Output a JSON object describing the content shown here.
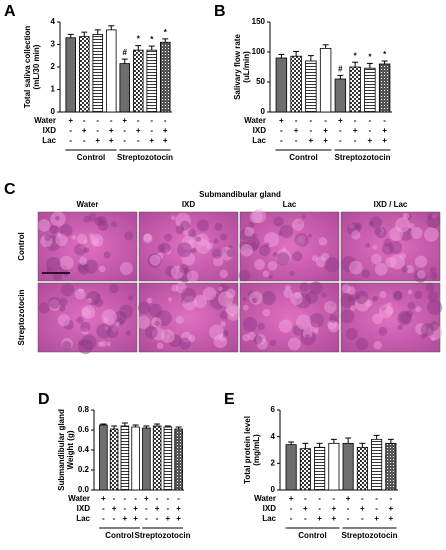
{
  "chart_data": [
    {
      "type": "bar",
      "panel": "A",
      "ylabel": [
        "Total saliva collection",
        "(mL/30 min)"
      ],
      "ylim": [
        0,
        4
      ],
      "yticks": [
        0,
        1,
        2,
        3,
        4
      ],
      "series": [
        {
          "values": [
            3.3,
            3.35,
            3.45,
            3.65,
            2.15,
            2.75,
            2.75,
            3.1
          ],
          "errors": [
            0.15,
            0.2,
            0.2,
            0.18,
            0.2,
            0.2,
            0.18,
            0.15
          ],
          "fills": [
            "solid-gray",
            "checker",
            "hlines",
            "white",
            "solid-gray",
            "checker",
            "hlines",
            "crosshatch"
          ]
        }
      ],
      "annotations": [
        null,
        null,
        null,
        null,
        "#",
        "*",
        "*",
        "*"
      ],
      "treatments": [
        {
          "name": "Water",
          "marks": [
            "+",
            "-",
            "-",
            "-",
            "+",
            "-",
            "-",
            "-"
          ]
        },
        {
          "name": "IXD",
          "marks": [
            "-",
            "+",
            "-",
            "+",
            "-",
            "+",
            "-",
            "+"
          ]
        },
        {
          "name": "Lac",
          "marks": [
            "-",
            "-",
            "+",
            "+",
            "-",
            "-",
            "+",
            "+"
          ]
        }
      ],
      "groups": [
        "Control",
        "Streptozotocin"
      ]
    },
    {
      "type": "bar",
      "panel": "B",
      "ylabel": [
        "Salivary flow rate",
        "(uL/min)"
      ],
      "ylim": [
        0,
        150
      ],
      "yticks": [
        0,
        50,
        100,
        150
      ],
      "series": [
        {
          "values": [
            90,
            93,
            85,
            106,
            55,
            75,
            73,
            80
          ],
          "errors": [
            6,
            8,
            9,
            6,
            6,
            8,
            8,
            5
          ],
          "fills": [
            "solid-gray",
            "checker",
            "hlines",
            "white",
            "solid-gray",
            "checker",
            "hlines",
            "crosshatch"
          ]
        }
      ],
      "annotations": [
        null,
        null,
        null,
        null,
        "#",
        "*",
        "*",
        "*"
      ],
      "treatments": [
        {
          "name": "Water",
          "marks": [
            "+",
            "-",
            "-",
            "-",
            "+",
            "-",
            "-",
            "-"
          ]
        },
        {
          "name": "IXD",
          "marks": [
            "-",
            "+",
            "-",
            "+",
            "-",
            "+",
            "-",
            "+"
          ]
        },
        {
          "name": "Lac",
          "marks": [
            "-",
            "-",
            "+",
            "+",
            "-",
            "-",
            "+",
            "+"
          ]
        }
      ],
      "groups": [
        "Control",
        "Streptozotocin"
      ]
    },
    {
      "type": "bar",
      "panel": "D",
      "ylabel": [
        "Submandibular gland",
        "Weight (g)"
      ],
      "ylim": [
        0,
        0.8
      ],
      "yticks": [
        {
          "value": 0,
          "label": "0.0"
        },
        0.2,
        0.4,
        0.6,
        0.8
      ],
      "series": [
        {
          "values": [
            0.65,
            0.61,
            0.64,
            0.63,
            0.62,
            0.64,
            0.63,
            0.61
          ],
          "errors": [
            0.01,
            0.03,
            0.03,
            0.02,
            0.02,
            0.02,
            0.01,
            0.02
          ],
          "fills": [
            "solid-gray",
            "checker",
            "hlines",
            "white",
            "solid-gray",
            "checker",
            "hlines",
            "crosshatch"
          ]
        }
      ],
      "annotations": [
        null,
        null,
        null,
        null,
        null,
        null,
        null,
        null
      ],
      "treatments": [
        {
          "name": "Water",
          "marks": [
            "+",
            "-",
            "-",
            "-",
            "+",
            "-",
            "-",
            "-"
          ]
        },
        {
          "name": "IXD",
          "marks": [
            "-",
            "+",
            "-",
            "+",
            "-",
            "+",
            "-",
            "+"
          ]
        },
        {
          "name": "Lac",
          "marks": [
            "-",
            "-",
            "+",
            "+",
            "-",
            "-",
            "+",
            "+"
          ]
        }
      ],
      "groups": [
        "Control",
        "Streptozotocin"
      ]
    },
    {
      "type": "bar",
      "panel": "E",
      "ylabel": [
        "Total protein level",
        "(mg/mL)"
      ],
      "ylim": [
        0,
        6
      ],
      "yticks": [
        0,
        2,
        4,
        6
      ],
      "series": [
        {
          "values": [
            3.4,
            3.1,
            3.2,
            3.5,
            3.5,
            3.2,
            3.8,
            3.5
          ],
          "errors": [
            0.2,
            0.4,
            0.3,
            0.3,
            0.4,
            0.3,
            0.3,
            0.3
          ],
          "fills": [
            "solid-gray",
            "checker",
            "hlines",
            "white",
            "solid-gray",
            "checker",
            "hlines",
            "crosshatch"
          ]
        }
      ],
      "annotations": [
        null,
        null,
        null,
        null,
        null,
        null,
        null,
        null
      ],
      "treatments": [
        {
          "name": "Water",
          "marks": [
            "+",
            "-",
            "-",
            "-",
            "+",
            "-",
            "-",
            "-"
          ]
        },
        {
          "name": "IXD",
          "marks": [
            "-",
            "+",
            "-",
            "+",
            "-",
            "+",
            "-",
            "+"
          ]
        },
        {
          "name": "Lac",
          "marks": [
            "-",
            "-",
            "+",
            "+",
            "-",
            "-",
            "+",
            "+"
          ]
        }
      ],
      "groups": [
        "Control",
        "Streptozotocin"
      ]
    }
  ],
  "histology": {
    "panel": "C",
    "title": "Submandibular gland",
    "columns": [
      "Water",
      "IXD",
      "Lac",
      "IXD / Lac"
    ],
    "rows": [
      "Control",
      "Streptozotocin"
    ]
  }
}
